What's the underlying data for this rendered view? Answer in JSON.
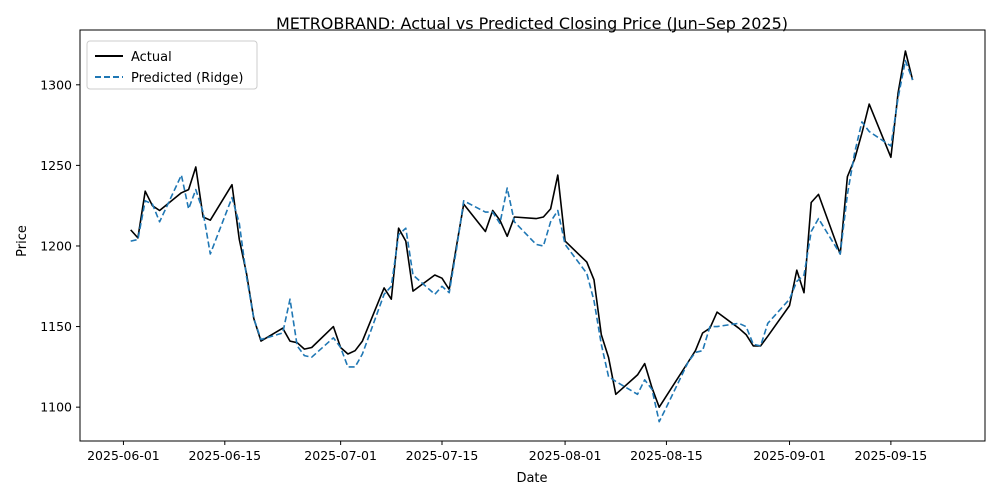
{
  "chart_data": {
    "type": "line",
    "title": "METROBRAND: Actual vs Predicted Closing Price (Jun–Sep 2025)",
    "xlabel": "Date",
    "ylabel": "Price",
    "xlim": [
      "2025-05-26",
      "2025-09-28"
    ],
    "ylim": [
      1079,
      1334
    ],
    "x_ticks": [
      "2025-06-01",
      "2025-06-15",
      "2025-07-01",
      "2025-07-15",
      "2025-08-01",
      "2025-08-15",
      "2025-09-01",
      "2025-09-15"
    ],
    "y_ticks": [
      1100,
      1150,
      1200,
      1250,
      1300
    ],
    "legend_position": "top-left",
    "grid": false,
    "x": [
      "2025-06-02",
      "2025-06-03",
      "2025-06-04",
      "2025-06-05",
      "2025-06-06",
      "2025-06-09",
      "2025-06-10",
      "2025-06-11",
      "2025-06-12",
      "2025-06-13",
      "2025-06-16",
      "2025-06-17",
      "2025-06-18",
      "2025-06-19",
      "2025-06-20",
      "2025-06-23",
      "2025-06-24",
      "2025-06-25",
      "2025-06-26",
      "2025-06-27",
      "2025-06-30",
      "2025-07-01",
      "2025-07-02",
      "2025-07-03",
      "2025-07-04",
      "2025-07-07",
      "2025-07-08",
      "2025-07-09",
      "2025-07-10",
      "2025-07-11",
      "2025-07-14",
      "2025-07-15",
      "2025-07-16",
      "2025-07-17",
      "2025-07-18",
      "2025-07-21",
      "2025-07-22",
      "2025-07-23",
      "2025-07-24",
      "2025-07-25",
      "2025-07-28",
      "2025-07-29",
      "2025-07-30",
      "2025-07-31",
      "2025-08-01",
      "2025-08-04",
      "2025-08-05",
      "2025-08-06",
      "2025-08-07",
      "2025-08-08",
      "2025-08-11",
      "2025-08-12",
      "2025-08-13",
      "2025-08-14",
      "2025-08-15",
      "2025-08-18",
      "2025-08-19",
      "2025-08-20",
      "2025-08-21",
      "2025-08-22",
      "2025-08-25",
      "2025-08-26",
      "2025-08-27",
      "2025-08-28",
      "2025-08-29",
      "2025-09-01",
      "2025-09-02",
      "2025-09-03",
      "2025-09-04",
      "2025-09-05",
      "2025-09-08",
      "2025-09-09",
      "2025-09-10",
      "2025-09-11",
      "2025-09-12",
      "2025-09-15",
      "2025-09-16",
      "2025-09-17",
      "2025-09-18"
    ],
    "series": [
      {
        "name": "Actual",
        "color": "#000000",
        "style": "solid",
        "values": [
          1210,
          1205,
          1234,
          1225,
          1222,
          1233,
          1235,
          1249,
          1218,
          1216,
          1238,
          1204,
          1183,
          1155,
          1141,
          1149,
          1141,
          1140,
          1136,
          1137,
          1150,
          1137,
          1133,
          1135,
          1141,
          1174,
          1167,
          1211,
          1203,
          1172,
          1182,
          1180,
          1173,
          1200,
          1226,
          1209,
          1222,
          1216,
          1206,
          1218,
          1217,
          1218,
          1223,
          1244,
          1203,
          1190,
          1179,
          1145,
          1131,
          1108,
          1120,
          1127,
          1112,
          1100,
          1107,
          1128,
          1135,
          1146,
          1149,
          1159,
          1149,
          1145,
          1138,
          1138,
          1144,
          1163,
          1185,
          1171,
          1227,
          1232,
          1195,
          1243,
          1254,
          1270,
          1288,
          1255,
          1295,
          1321,
          1303
        ]
      },
      {
        "name": "Predicted (Ridge)",
        "color": "#1f77b4",
        "style": "dashed",
        "values": [
          1203,
          1204,
          1228,
          1226,
          1215,
          1244,
          1223,
          1235,
          1221,
          1195,
          1230,
          1214,
          1181,
          1155,
          1142,
          1146,
          1167,
          1138,
          1132,
          1131,
          1143,
          1137,
          1125,
          1125,
          1133,
          1170,
          1175,
          1207,
          1211,
          1182,
          1170,
          1175,
          1171,
          1198,
          1228,
          1221,
          1221,
          1214,
          1236,
          1215,
          1201,
          1200,
          1215,
          1222,
          1201,
          1183,
          1166,
          1139,
          1119,
          1116,
          1108,
          1117,
          1111,
          1091,
          1100,
          1128,
          1134,
          1135,
          1150,
          1150,
          1152,
          1150,
          1139,
          1138,
          1152,
          1167,
          1178,
          1182,
          1209,
          1217,
          1195,
          1232,
          1258,
          1277,
          1271,
          1262,
          1292,
          1315,
          1303
        ]
      }
    ]
  }
}
